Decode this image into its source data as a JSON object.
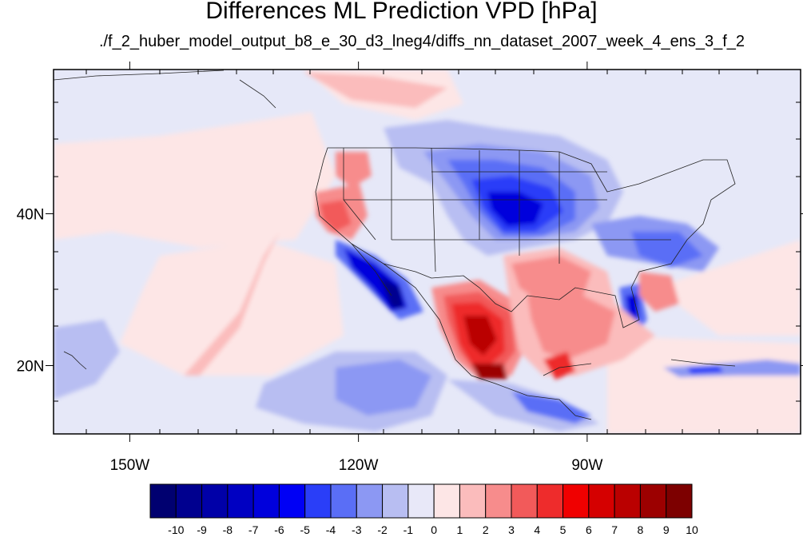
{
  "title": "Differences ML Prediction VPD [hPa]",
  "subtitle": "./f_2_huber_model_output_b8_e_30_d3_lneg4/diffs_nn_dataset_2007_week_4_ens_3_f_2",
  "map": {
    "lon_range": [
      -160,
      -62
    ],
    "lat_range": [
      11,
      59
    ],
    "x_ticks": [
      {
        "lon": -150,
        "label": "150W"
      },
      {
        "lon": -120,
        "label": "120W"
      },
      {
        "lon": -90,
        "label": "90W"
      }
    ],
    "y_ticks": [
      {
        "lat": 40,
        "label": "40N"
      },
      {
        "lat": 20,
        "label": "20N"
      }
    ],
    "grid": false
  },
  "colorbar": {
    "labels": [
      "-10",
      "-9",
      "-8",
      "-7",
      "-6",
      "-5",
      "-4",
      "-3",
      "-2",
      "-1",
      "0",
      "1",
      "2",
      "3",
      "4",
      "5",
      "6",
      "7",
      "8",
      "9",
      "10"
    ],
    "colors": [
      "#000070",
      "#00008f",
      "#0000a8",
      "#0000c2",
      "#0000dc",
      "#0000f5",
      "#2a3ef8",
      "#5a6ef6",
      "#8c98f3",
      "#b8bef2",
      "#e8e8f8",
      "#fde6e6",
      "#fbbcbc",
      "#f78c8c",
      "#f25a5a",
      "#ee2c2c",
      "#f00000",
      "#d50000",
      "#ba0000",
      "#9c0000",
      "#7d0000"
    ]
  }
}
